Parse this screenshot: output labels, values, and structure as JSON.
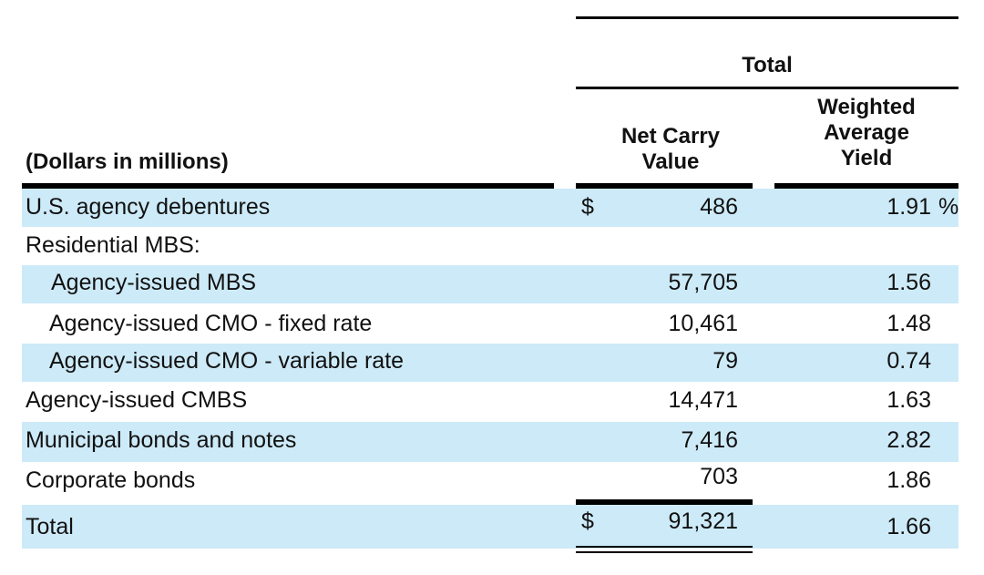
{
  "header": {
    "caption": "(Dollars in millions)",
    "group_title": "Total",
    "col_net_carry": [
      "Net Carry",
      "Value"
    ],
    "col_yield": [
      "Weighted",
      "Average",
      "Yield"
    ]
  },
  "currency_symbol": "$",
  "percent_symbol": "%",
  "rows": [
    {
      "label": "U.S. agency debentures",
      "net_carry_value": "486",
      "weighted_average_yield": "1.91"
    },
    {
      "label": "Residential MBS:",
      "net_carry_value": "",
      "weighted_average_yield": ""
    },
    {
      "label": "Agency-issued MBS",
      "net_carry_value": "57,705",
      "weighted_average_yield": "1.56"
    },
    {
      "label": "Agency-issued CMO - fixed rate",
      "net_carry_value": "10,461",
      "weighted_average_yield": "1.48"
    },
    {
      "label": "Agency-issued CMO - variable rate",
      "net_carry_value": "79",
      "weighted_average_yield": "0.74"
    },
    {
      "label": "Agency-issued CMBS",
      "net_carry_value": "14,471",
      "weighted_average_yield": "1.63"
    },
    {
      "label": "Municipal bonds and notes",
      "net_carry_value": "7,416",
      "weighted_average_yield": "2.82"
    },
    {
      "label": "Corporate bonds",
      "net_carry_value": "703",
      "weighted_average_yield": "1.86"
    },
    {
      "label": "Total",
      "net_carry_value": "91,321",
      "weighted_average_yield": "1.66"
    }
  ],
  "colors": {
    "row_band": "#cdeaf8",
    "rule": "#000000"
  }
}
